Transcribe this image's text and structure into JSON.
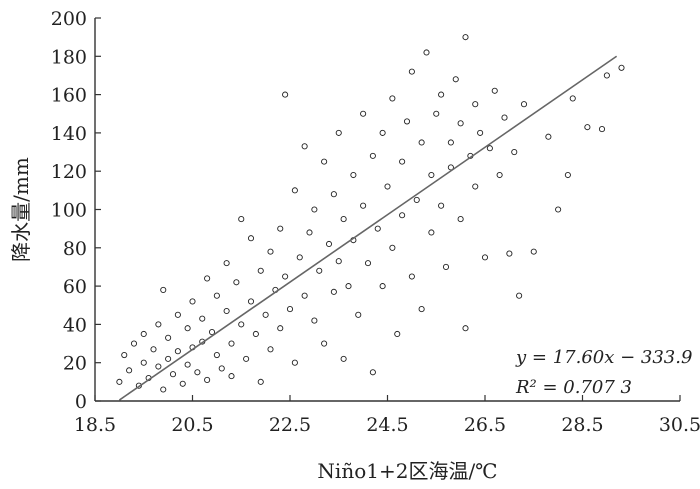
{
  "chart_data": {
    "type": "scatter",
    "xlabel": "Niño1+2区海温/℃",
    "ylabel": "降水量/mm",
    "xlim": [
      18.5,
      30.5
    ],
    "ylim": [
      0,
      200
    ],
    "x_ticks": [
      "18.5",
      "20.5",
      "22.5",
      "24.5",
      "26.5",
      "28.5",
      "30.5"
    ],
    "y_ticks": [
      "0",
      "20",
      "40",
      "60",
      "80",
      "100",
      "120",
      "140",
      "160",
      "180",
      "200"
    ],
    "grid": false,
    "marker": "open-circle",
    "regression": {
      "slope": 17.6,
      "intercept": -333.9,
      "r_squared": 0.7073,
      "x_range": [
        19.0,
        29.2
      ],
      "equation_label": "y = 17.60x − 333.9",
      "r2_label": "R² = 0.707 3"
    },
    "points": [
      [
        19.0,
        10
      ],
      [
        19.1,
        24
      ],
      [
        19.2,
        16
      ],
      [
        19.3,
        30
      ],
      [
        19.4,
        8
      ],
      [
        19.5,
        20
      ],
      [
        19.5,
        35
      ],
      [
        19.6,
        12
      ],
      [
        19.7,
        27
      ],
      [
        19.8,
        18
      ],
      [
        19.8,
        40
      ],
      [
        19.9,
        6
      ],
      [
        19.9,
        58
      ],
      [
        20.0,
        22
      ],
      [
        20.0,
        33
      ],
      [
        20.1,
        14
      ],
      [
        20.2,
        45
      ],
      [
        20.2,
        26
      ],
      [
        20.3,
        9
      ],
      [
        20.4,
        38
      ],
      [
        20.4,
        19
      ],
      [
        20.5,
        52
      ],
      [
        20.5,
        28
      ],
      [
        20.6,
        15
      ],
      [
        20.7,
        43
      ],
      [
        20.7,
        31
      ],
      [
        20.8,
        64
      ],
      [
        20.8,
        11
      ],
      [
        20.9,
        36
      ],
      [
        21.0,
        24
      ],
      [
        21.0,
        55
      ],
      [
        21.1,
        17
      ],
      [
        21.2,
        47
      ],
      [
        21.2,
        72
      ],
      [
        21.3,
        30
      ],
      [
        21.3,
        13
      ],
      [
        21.4,
        62
      ],
      [
        21.5,
        40
      ],
      [
        21.5,
        95
      ],
      [
        21.6,
        22
      ],
      [
        21.7,
        52
      ],
      [
        21.7,
        85
      ],
      [
        21.8,
        35
      ],
      [
        21.9,
        68
      ],
      [
        21.9,
        10
      ],
      [
        22.0,
        45
      ],
      [
        22.1,
        78
      ],
      [
        22.1,
        27
      ],
      [
        22.2,
        58
      ],
      [
        22.3,
        90
      ],
      [
        22.3,
        38
      ],
      [
        22.4,
        160
      ],
      [
        22.4,
        65
      ],
      [
        22.5,
        48
      ],
      [
        22.6,
        110
      ],
      [
        22.6,
        20
      ],
      [
        22.7,
        75
      ],
      [
        22.8,
        133
      ],
      [
        22.8,
        55
      ],
      [
        22.9,
        88
      ],
      [
        23.0,
        42
      ],
      [
        23.0,
        100
      ],
      [
        23.1,
        68
      ],
      [
        23.2,
        125
      ],
      [
        23.2,
        30
      ],
      [
        23.3,
        82
      ],
      [
        23.4,
        57
      ],
      [
        23.4,
        108
      ],
      [
        23.5,
        73
      ],
      [
        23.5,
        140
      ],
      [
        23.6,
        95
      ],
      [
        23.6,
        22
      ],
      [
        23.7,
        60
      ],
      [
        23.8,
        118
      ],
      [
        23.8,
        84
      ],
      [
        23.9,
        45
      ],
      [
        24.0,
        102
      ],
      [
        24.0,
        150
      ],
      [
        24.1,
        72
      ],
      [
        24.2,
        128
      ],
      [
        24.2,
        15
      ],
      [
        24.3,
        90
      ],
      [
        24.4,
        140
      ],
      [
        24.4,
        60
      ],
      [
        24.5,
        112
      ],
      [
        24.6,
        80
      ],
      [
        24.6,
        158
      ],
      [
        24.7,
        35
      ],
      [
        24.8,
        125
      ],
      [
        24.8,
        97
      ],
      [
        24.9,
        146
      ],
      [
        25.0,
        65
      ],
      [
        25.0,
        172
      ],
      [
        25.1,
        105
      ],
      [
        25.2,
        135
      ],
      [
        25.2,
        48
      ],
      [
        25.3,
        182
      ],
      [
        25.4,
        118
      ],
      [
        25.4,
        88
      ],
      [
        25.5,
        150
      ],
      [
        25.6,
        102
      ],
      [
        25.6,
        160
      ],
      [
        25.7,
        70
      ],
      [
        25.8,
        135
      ],
      [
        25.8,
        122
      ],
      [
        25.9,
        168
      ],
      [
        26.0,
        95
      ],
      [
        26.0,
        145
      ],
      [
        26.1,
        38
      ],
      [
        26.1,
        190
      ],
      [
        26.2,
        128
      ],
      [
        26.3,
        112
      ],
      [
        26.3,
        155
      ],
      [
        26.4,
        140
      ],
      [
        26.5,
        75
      ],
      [
        26.6,
        132
      ],
      [
        26.7,
        162
      ],
      [
        26.8,
        118
      ],
      [
        26.9,
        148
      ],
      [
        27.0,
        77
      ],
      [
        27.1,
        130
      ],
      [
        27.2,
        55
      ],
      [
        27.3,
        155
      ],
      [
        27.5,
        78
      ],
      [
        27.8,
        138
      ],
      [
        28.0,
        100
      ],
      [
        28.2,
        118
      ],
      [
        28.3,
        158
      ],
      [
        28.6,
        143
      ],
      [
        28.9,
        142
      ],
      [
        29.0,
        170
      ],
      [
        29.3,
        174
      ]
    ]
  }
}
